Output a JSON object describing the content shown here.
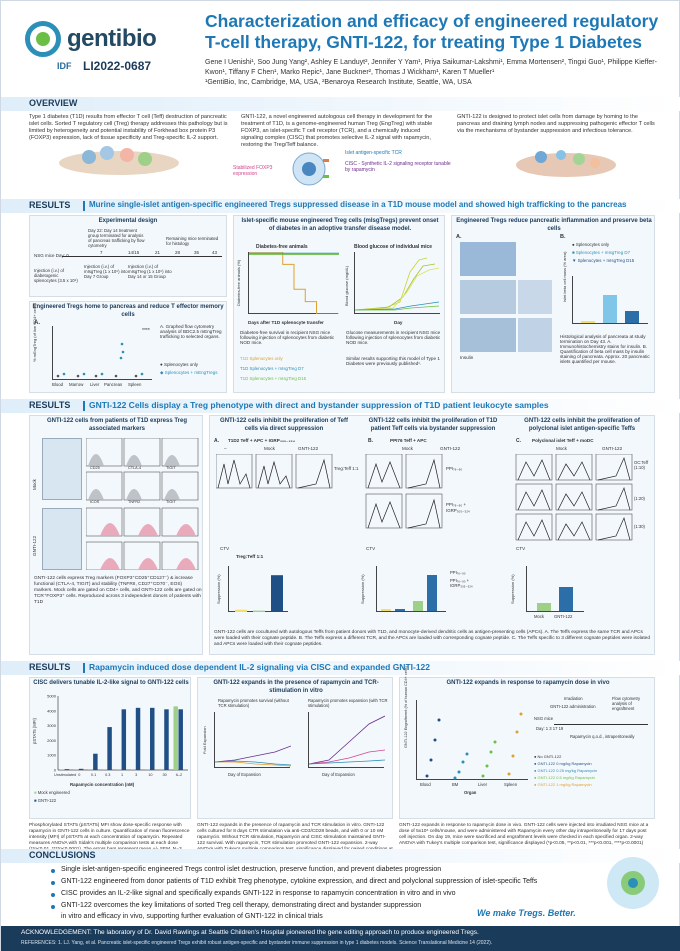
{
  "header": {
    "logo_text": "gentibio",
    "poster_badge": "IDF",
    "poster_id": "LI2022-0687",
    "title": "Characterization and efficacy of engineered regulatory T-cell therapy, GNTI-122, for treating Type 1 Diabetes",
    "authors": "Gene I Uenishi¹, Soo Jung Yang², Ashley E Landuyt², Jennifer Y Yam¹, Priya Saikumar-Lakshmi¹, Emma Mortensen², Tingxi Guo¹, Philippe Kieffer-Kwon¹, Tiffany F Chen¹, Marko Repic¹, Jane Buckner², Thomas J Wickham¹, Karen T Mueller¹",
    "affiliations": "¹GentiBio, Inc, Cambridge, MA, USA, ²Benaroya Research Institute, Seattle, WA, USA"
  },
  "overview": {
    "heading": "OVERVIEW",
    "col1": "Type 1 diabetes (T1D) results from effector T cell (Teff) destruction of pancreatic islet cells. Sorted T regulatory cell (Treg) therapy addresses this pathology but is limited by heterogeneity and potential instability of Forkhead box protein P3 (FOXP3) expression, lack of tissue specificity and Treg-specific IL-2 support.",
    "col2": "GNTI-122, a novel engineered autologous cell therapy in development for the treatment of T1D, is a genome-engineered human Treg (EngTreg) with stable FOXP3, an islet-specific T cell receptor (TCR), and a chemically induced signaling complex (CISC) that promotes selective IL-2 signal with rapamycin, restoring the Treg/Teff balance.",
    "col3": "GNTI-122 is designed to protect islet cells from damage by homing to the pancreas and draining lymph nodes and suppressing pathogenic effector T cells via the mechanisms of bystander suppression and infectious tolerance.",
    "label_tcr": "Islet antigen-specific TCR",
    "label_foxp3": "Stabilized FOXP3 expression",
    "label_cisc": "CISC - Synthetic IL-2 signaling receptor tunable by rapamycin"
  },
  "results1": {
    "heading": "RESULTS",
    "subheading": "Murine single-islet antigen-specific engineered Tregs suppressed disease in a T1D mouse model and showed high trafficking to the pancreas",
    "exp_title": "Experimental design",
    "exp_note1": "Day 22: Day 14 treatment group terminated for analysis of pancreas trafficking by flow cytometry",
    "exp_note2": "Remaining mice terminated for histology",
    "exp_day0": "NSG mice Day: 0",
    "exp_days": [
      "7",
      "14/15",
      "21",
      "28",
      "35",
      "43"
    ],
    "exp_inj1": "Injection (i.v.) of diabetogenic splenocytes (3.5 x 10⁶)",
    "exp_inj2": "Injection (i.v.) of mIsgTreg (1 x 10⁶) into Day 7 Group",
    "exp_inj3": "Injection (i.v.) of mIsgTreg (1 x 10⁶) into Day 14 or 15 Group",
    "home_title": "Engineered Tregs home to pancreas and reduce T effector memory cells",
    "home_panel": "A.",
    "home_caption": "A. Graphed flow cytometry analysis of BDC2.5 mEngTreg trafficking to selected organs.",
    "home_ylabel": "% mEngTreg (of live CD4+ cells)",
    "home_organs": [
      "Blood",
      "Marrow",
      "Liver",
      "Pancreas",
      "Spleen"
    ],
    "home_legend": [
      "Splenocytes only",
      "Splenocytes + mEngTregs"
    ],
    "home_sig": "****",
    "dfs_title": "Islet-specific mouse engineered Treg cells (mIsgTregs) prevent onset of diabetes in an adoptive transfer disease model.",
    "dfs_chart_title": "Diabetes-free animals",
    "dfs_xlabel": "Days after T1D splenocyte transfer",
    "dfs_ylabel": "Diabetes-free animals (%)",
    "dfs_caption": "Diabetes-free survival in recipient NSG mice following injection of splenocytes from diabetic NOD mice.",
    "dfs_legend": [
      "T1D Splenocytes only",
      "T1D Splenocytes + mIsgTreg D7",
      "T1D Splenocytes + mIsgTreg D15"
    ],
    "bg_chart_title": "Blood glucose of individual mice",
    "bg_xlabel": "Day",
    "bg_ylabel": "Blood glucose (mg/dL)",
    "bg_caption": "Glucose measurements in recipient NSG mice following injection of splenocytes from diabetic NOD mice.",
    "bg_caption2": "Similar results supporting this model of Type 1 Diabetes were previously published¹.",
    "histo_title": "Engineered Tregs reduce pancreatic inflammation and preserve beta cells",
    "histo_panel_a": "A.",
    "histo_panel_b": "B.",
    "histo_insulin": "Insulin",
    "histo_ylabel": "Islet beta cell mass (% area)",
    "histo_legend": [
      "Splenocytes only",
      "Splenocytes + mIsgTreg D7",
      "Splenocytes + mIsgTreg D15"
    ],
    "histo_caption": "Histological analysis of pancreata at study termination on Day 43. A. Immunohistochemistry stains for insulin. B. Quantification of beta cell mass by insulin staining of pancreata. Approx. 20 pancreatic islets quantified per mouse."
  },
  "results2": {
    "heading": "RESULTS",
    "subheading": "GNTI-122 Cells display a Treg phenotype with direct and bystander suppression of T1D patient leukocyte samples",
    "flow_title": "GNTI-122 cells from patients of T1D express Treg associated markers",
    "flow_rows": [
      "Mock",
      "GNTI-122"
    ],
    "flow_markers": [
      "CD25",
      "CTLA-4",
      "TIGIT",
      "ICOS",
      "TNFR2",
      "TIGIT"
    ],
    "flow_caption": "GNTI-122 cells express Treg markers (FOXP3⁺CD25⁺CD127⁻) & increase functional (CTLA-4, TIGIT) and stability (TNFRII, CD27⁺CD70⁻, EOS) markers. Mock cells are gated on CD4+ cells, and GNTI-122 cells are gated on TCR⁺FOXP3⁺ cells. Reproduced across 3 independent donors of patients with T1D",
    "suppA_title": "GNTI-122 cells inhibit the proliferation of Teff cells via direct suppression",
    "suppA_panel": "A.",
    "suppA_cond": "T1D2 Teff + APC + IGRP₃₀₅₋₃₂₄",
    "suppB_title": "GNTI-122 cells inhibit the proliferation of T1D patient Teff cells via bystander suppression",
    "suppB_panel": "B.",
    "suppB_cond": "PPI76 Teff + APC",
    "suppC_title": "GNTI-122 cells inhibit the proliferation of polyclonal islet antigen-specific Teffs",
    "suppC_panel": "C.",
    "suppC_cond": "Polyclonal islet Teff + moDC",
    "col_mock": "Mock",
    "col_gnti": "GNTI-122",
    "row_teff": "Treg:Teff 1:1",
    "ratios": [
      "OC:Teff (1:10)",
      "(1:20)",
      "(1:30)"
    ],
    "dash": "–",
    "ppi": "PPI₇₆₋₉₀",
    "ppi_igrp": "PPI₇₆₋₉₀ + IGRP₃₀₅₋₃₂₄",
    "ctv": "CTV",
    "supp_ylabel": "Suppression (%)",
    "supp_ratio": "Treg:Teff 1:1",
    "supp_caption": "GNTI-122 cells are cocultured with autologous Teffs from patient donors with T1D, and monocyte-derived dendritic cells as antigen-presenting cells (APCs). A. The Teffs express the same TCR and APCs were loaded with their cognate peptide. B. The Teffs express a different TCR, and the APCs are loaded with corresponding cognate peptide. C. The Teffs specific to 3 different cognate peptides were isolated and APCs were loaded with their cognate peptides."
  },
  "results3": {
    "heading": "RESULTS",
    "subheading": "Rapamycin induced dose dependent IL-2 signaling via CISC and expanded GNTI-122",
    "stat5_title": "CISC delivers tunable IL-2-like signal to GNTI-122 cells",
    "stat5_ylabel": "pSTAT5 (MFI)",
    "stat5_xlabel": "Rapamycin concentration (nM)",
    "stat5_legend": [
      "Mock engineered",
      "GNTI-122"
    ],
    "stat5_caption": "Phosphorylated STAT5 (pSTAT5) MFI show dose-specific response with rapamycin in GNTI-122 cells in culture. Quantification of mean fluorescence intensity (MFI) of pSTAT5 at each concentration of rapamycin. Repeated measures ANOVA with Sidak's multiple comparison tests at each dose (**p<0.01, ****p<0.0001). The errors bars represent mean +/- SEM, N=3 donors.",
    "exp_title": "GNTI-122 expands in the presence of rapamycin and TCR-stimulation in vitro",
    "exp_sub1": "Rapamycin promotes survival (without TCR stimulation)",
    "exp_sub2": "Rapamycin promotes expansion (with TCR stimulation)",
    "exp_xlabel": "Day of Expansion",
    "exp_ylabel": "Fold Expansion",
    "exp_caption": "GNTI-122 expands in the presence of rapamycin and TCR stimulation in vitro. GNTI-122 cells cultured for 8 days CTR stimulation via anti-CD3/CD28 beads, and with 0 or 10 nM rapamycin. Without TCR stimulation, Rapamycin and CISC stimulation maintained GNTI-122 survival. With rapamycin, TCR stimulation promoted GNTI-122 expansion. 2-way ANOVA with Tukey's multiple comparison test, significance displayed for paired conditions at day 8 (*p<0.05, **p<0.01, ***p<0.001, ****p<0.0001)",
    "vivo_title": "GNTI-122 expands in response to rapamycin dose in vivo",
    "vivo_steps": [
      "Irradiation",
      "GNTI-122 administration",
      "Flow cytometry analysis of engraftment"
    ],
    "vivo_mice": "NSG mice",
    "vivo_days": "Day: 1  3                  17  19",
    "vivo_rapa": "Rapamycin q.o.d., intraperitoneally",
    "vivo_ylabel": "GNTI-122 Engraftment (% of human CD4+ cells)",
    "vivo_xlabel": "Organ",
    "vivo_organs": [
      "Blood",
      "BM",
      "Liver",
      "Spleen"
    ],
    "vivo_legend": [
      "No GNTI-122",
      "GNTI-122 0 mg/kg Rapamycin",
      "GNTI-122 0.25 mg/kg Rapamycin",
      "GNTI-122 0.5 mg/kg Rapamycin",
      "GNTI-122 1 mg/kg Rapamycin"
    ],
    "vivo_caption": "GNTI-122 expands in response to rapamycin dose in vivo. GNTI-122 cells were injected into irradiated NSG mice at a dose of 5x10⁶ cells/mouse, and were administered with Rapamycin every other day intraperitoneally for 17 days post cell injection. On day 19, mice were sacrificed and engraftment levels were checked in each specified organ. 2-way ANOVA with Tukey's multiple comparison test, significance displayed (*p<0.05, **p<0.01, ***p<0.001, ****p<0.0001)"
  },
  "conclusions": {
    "heading": "CONCLUSIONS",
    "items": [
      "Single islet-antigen-specific engineered Tregs control islet destruction, preserve function, and prevent diabetes progression",
      "GNTI-122 engineered from donor patients of T1D exhibit Treg phenotype, cytokine expression, and direct and polyclonal suppression of islet-specific Teffs",
      "CISC provides an IL-2-like signal and specifically expands GNTI-122 in response to rapamycin concentration in vitro and in vivo",
      "GNTI-122 overcomes the key limitations of sorted Treg cell therapy, demonstrating direct and bystander suppression",
      "in vitro and efficacy in vivo, supporting further evaluation of GNTI-122 in clinical trials"
    ],
    "tagline": "We make Tregs. Better."
  },
  "footer": {
    "ack": "ACKNOWLEDGEMENT: The laboratory of Dr. David Rawlings at Seattle Children's Hospital pioneered the gene editing approach to produce engineered Tregs.",
    "ref": "REFERENCES: 1. LJ. Yang, et al. Pancreatic islet-specific engineered Tregs exhibit robust antigen-specific and bystander immune suppression in type 1 diabetes models. Science Translational Medicine 14 (2022)."
  },
  "chart_data": [
    {
      "type": "bar",
      "title": "CISC delivers tunable IL-2-like signal to GNTI-122 cells",
      "categories": [
        "Unstimulated",
        "0",
        "0.1",
        "0.3",
        "1",
        "3",
        "10",
        "30",
        "IL-2"
      ],
      "series": [
        {
          "name": "Mock engineered",
          "values": [
            50,
            60,
            60,
            60,
            60,
            60,
            60,
            70,
            4300
          ]
        },
        {
          "name": "GNTI-122",
          "values": [
            60,
            80,
            1100,
            2900,
            4100,
            4200,
            4200,
            4100,
            4100
          ]
        }
      ],
      "xlabel": "Rapamycin concentration (nM)",
      "ylabel": "pSTAT5 (MFI)",
      "ylim": [
        0,
        5000
      ],
      "yticks": [
        "0",
        "1000",
        "2000",
        "3000",
        "4000",
        "5000"
      ]
    },
    {
      "type": "bar",
      "title": "Treg:Teff 1:1",
      "categories": [
        "–",
        "Mock",
        "GNTI-122"
      ],
      "values": [
        5,
        3,
        80
      ],
      "ylabel": "Suppression (%)",
      "ylim": [
        0,
        100
      ]
    },
    {
      "type": "line",
      "title": "Diabetes-free animals",
      "xlabel": "Days after T1D splenocyte transfer",
      "ylabel": "Diabetes-free animals (%)",
      "x": [
        0,
        10,
        15,
        20,
        25,
        30,
        35,
        40
      ],
      "series": [
        {
          "name": "T1D Splenocytes only",
          "values": [
            100,
            100,
            80,
            40,
            20,
            0,
            0,
            0
          ]
        },
        {
          "name": "T1D Splenocytes + mIsgTreg D7",
          "values": [
            100,
            100,
            100,
            100,
            100,
            100,
            100,
            100
          ]
        },
        {
          "name": "T1D Splenocytes + mIsgTreg D15",
          "values": [
            100,
            100,
            100,
            100,
            100,
            100,
            100,
            100
          ]
        }
      ],
      "ylim": [
        0,
        100
      ]
    }
  ]
}
